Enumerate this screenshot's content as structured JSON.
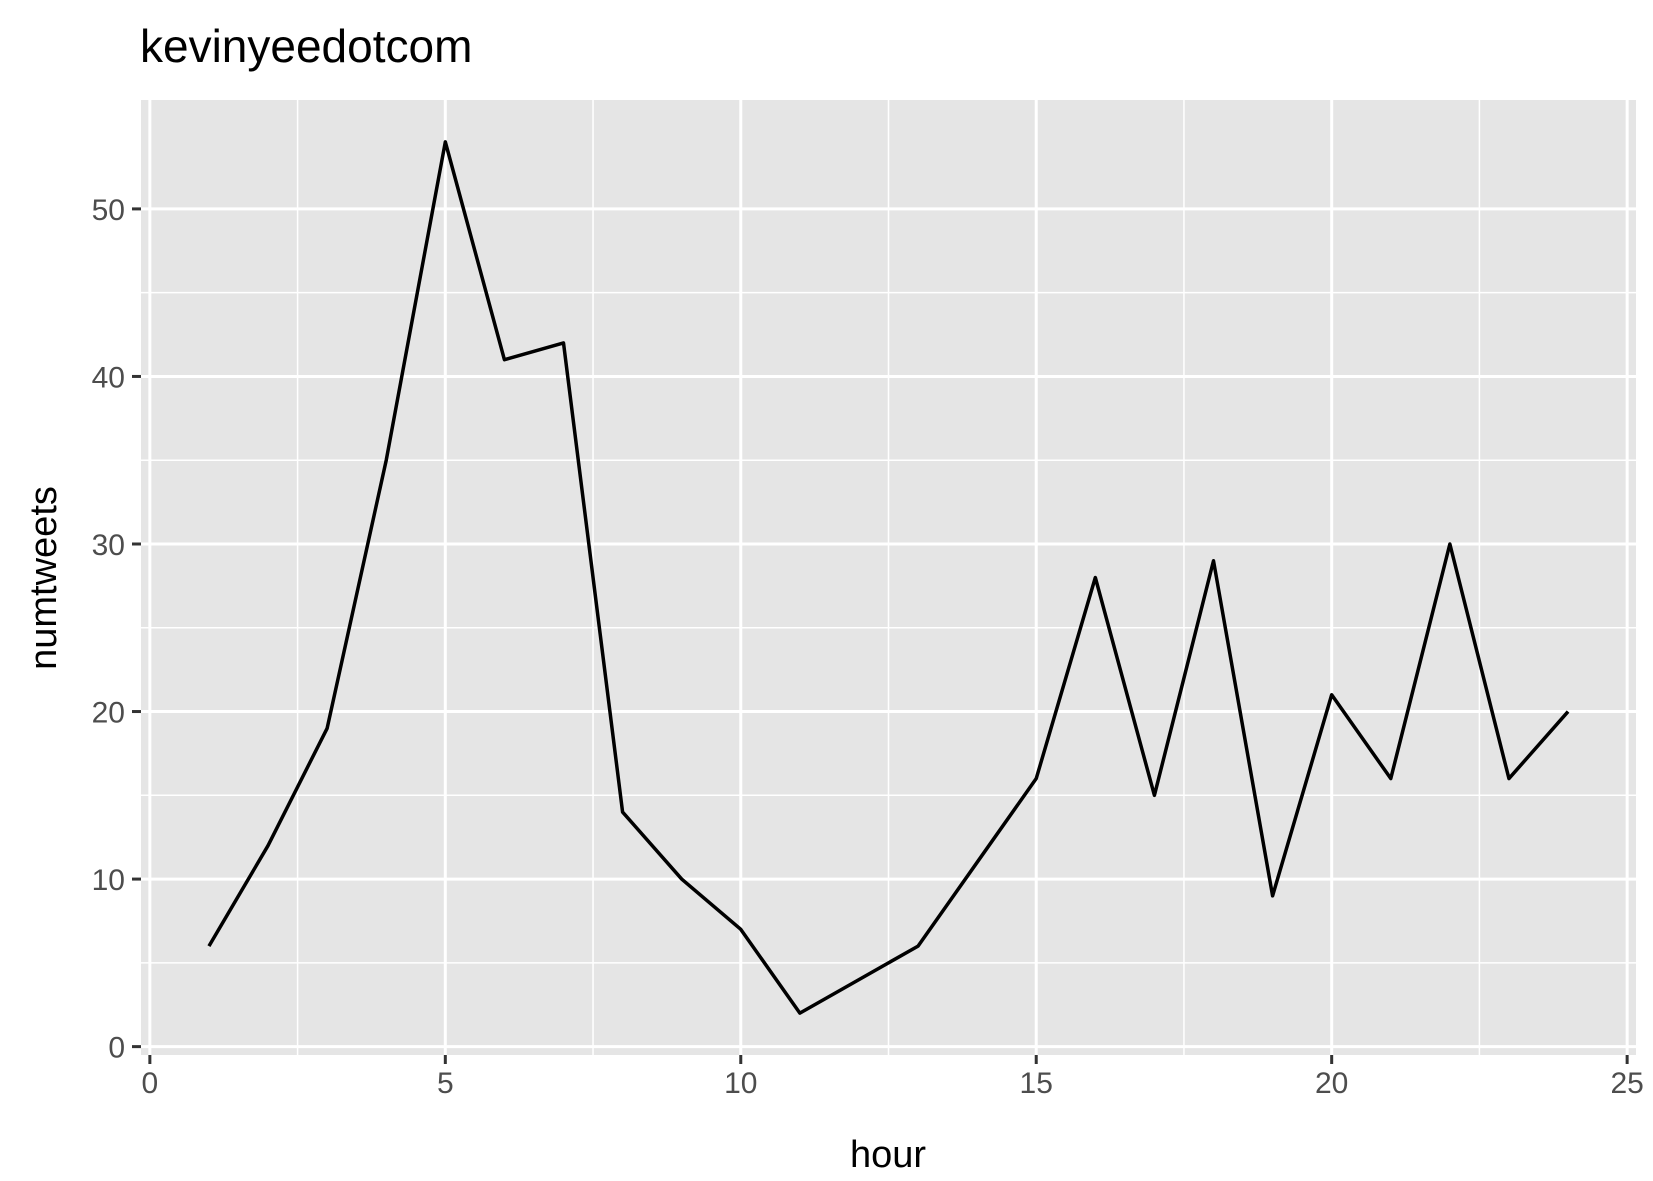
{
  "chart_data": {
    "type": "line",
    "title": "kevinyeedotcom",
    "xlabel": "hour",
    "ylabel": "numtweets",
    "x": [
      1,
      2,
      3,
      4,
      5,
      6,
      7,
      8,
      9,
      10,
      11,
      12,
      13,
      14,
      15,
      16,
      17,
      18,
      19,
      20,
      21,
      22,
      23,
      24
    ],
    "series": [
      {
        "values": [
          6,
          12,
          19,
          35,
          54,
          41,
          42,
          14,
          10,
          7,
          2,
          4,
          6,
          11,
          16,
          28,
          15,
          29,
          9,
          21,
          16,
          30,
          16,
          20
        ]
      }
    ],
    "xlim": [
      -0.15,
      25.15
    ],
    "ylim": [
      -0.5,
      56.5
    ],
    "xticks": [
      0,
      5,
      10,
      15,
      20,
      25
    ],
    "yticks": [
      0,
      10,
      20,
      30,
      40,
      50
    ],
    "xtick_labels": [
      "0",
      "5",
      "10",
      "15",
      "20",
      "25"
    ],
    "ytick_labels": [
      "0",
      "10",
      "20",
      "30",
      "40",
      "50"
    ],
    "grid": true,
    "legend": "none",
    "colors": {
      "panel": "#e5e5e5",
      "grid": "#ffffff",
      "line": "#000000",
      "tick_text": "#4d4d4d"
    }
  }
}
